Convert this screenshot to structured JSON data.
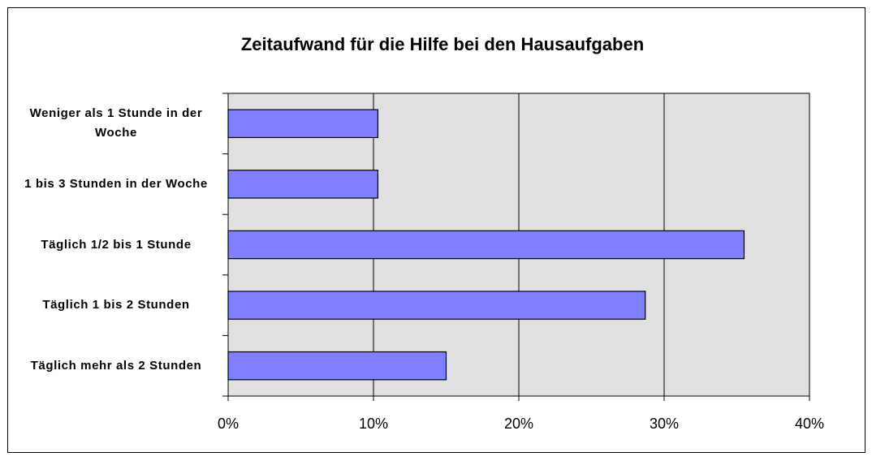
{
  "chart_data": {
    "type": "barh",
    "title": "Zeitaufwand für die Hilfe bei den Hausaufgaben",
    "categories": [
      "Weniger als 1 Stunde in der Woche",
      "1 bis 3 Stunden in der Woche",
      "Täglich 1/2 bis 1 Stunde",
      "Täglich 1 bis 2 Stunden",
      "Täglich mehr als 2 Stunden"
    ],
    "values": [
      10.3,
      10.3,
      35.5,
      28.7,
      15.0
    ],
    "color": "#8080ff",
    "xlim": [
      0,
      40
    ],
    "xticks": [
      {
        "value": 0,
        "label": "0%"
      },
      {
        "value": 10,
        "label": "10%"
      },
      {
        "value": 20,
        "label": "20%"
      },
      {
        "value": 30,
        "label": "30%"
      },
      {
        "value": 40,
        "label": "40%"
      }
    ],
    "grid": true
  }
}
